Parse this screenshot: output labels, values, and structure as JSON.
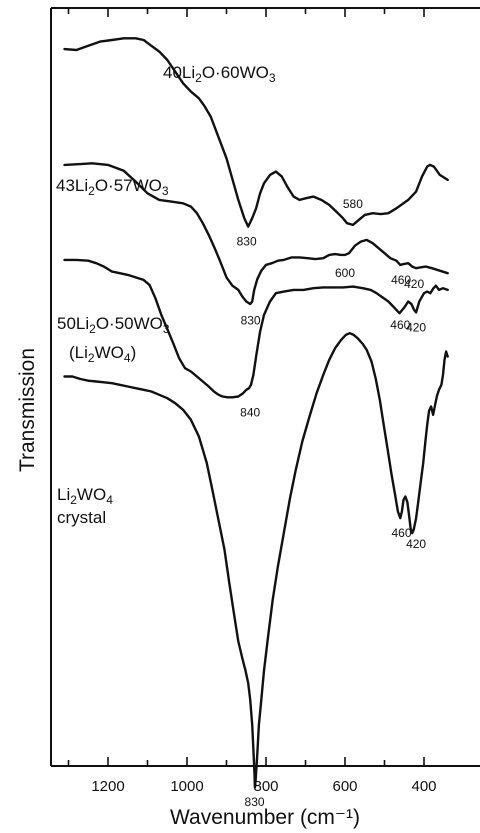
{
  "chart_data": {
    "type": "line",
    "title": "",
    "xlabel": "Wavenumber (cm⁻¹)",
    "ylabel": "Transmission",
    "xlim": [
      1310,
      340
    ],
    "x_ticks": [
      1200,
      1000,
      800,
      600,
      400
    ],
    "grid": false,
    "series": [
      {
        "name_parts": [
          [
            "40Li",
            ""
          ],
          [
            "2",
            "sub"
          ],
          [
            "O·60WO",
            ""
          ],
          [
            "3",
            "sub"
          ]
        ],
        "points": [
          [
            1310,
            59
          ],
          [
            1280,
            60
          ],
          [
            1250,
            55
          ],
          [
            1220,
            50
          ],
          [
            1190,
            48
          ],
          [
            1160,
            46
          ],
          [
            1130,
            46
          ],
          [
            1110,
            48
          ],
          [
            1090,
            55
          ],
          [
            1070,
            62
          ],
          [
            1050,
            72
          ],
          [
            1030,
            86
          ],
          [
            1010,
            100
          ],
          [
            990,
            110
          ],
          [
            970,
            118
          ],
          [
            955,
            128
          ],
          [
            940,
            140
          ],
          [
            920,
            165
          ],
          [
            900,
            190
          ],
          [
            885,
            215
          ],
          [
            870,
            240
          ],
          [
            855,
            262
          ],
          [
            845,
            272
          ],
          [
            835,
            262
          ],
          [
            825,
            250
          ],
          [
            815,
            232
          ],
          [
            805,
            220
          ],
          [
            790,
            210
          ],
          [
            775,
            206
          ],
          [
            760,
            212
          ],
          [
            745,
            225
          ],
          [
            730,
            236
          ],
          [
            715,
            240
          ],
          [
            700,
            238
          ],
          [
            680,
            236
          ],
          [
            660,
            240
          ],
          [
            640,
            246
          ],
          [
            620,
            255
          ],
          [
            605,
            262
          ],
          [
            595,
            268
          ],
          [
            580,
            270
          ],
          [
            565,
            264
          ],
          [
            550,
            258
          ],
          [
            530,
            256
          ],
          [
            510,
            257
          ],
          [
            490,
            256
          ],
          [
            470,
            250
          ],
          [
            455,
            245
          ],
          [
            440,
            240
          ],
          [
            420,
            230
          ],
          [
            405,
            212
          ],
          [
            392,
            200
          ],
          [
            385,
            198
          ],
          [
            375,
            200
          ],
          [
            360,
            210
          ],
          [
            340,
            216
          ]
        ]
      },
      {
        "name_parts": [
          [
            "43Li",
            ""
          ],
          [
            "2",
            "sub"
          ],
          [
            "O·57WO",
            ""
          ],
          [
            "3",
            "sub"
          ]
        ],
        "points": [
          [
            1310,
            198
          ],
          [
            1270,
            197
          ],
          [
            1240,
            196
          ],
          [
            1200,
            198
          ],
          [
            1160,
            205
          ],
          [
            1130,
            218
          ],
          [
            1100,
            232
          ],
          [
            1070,
            240
          ],
          [
            1040,
            242
          ],
          [
            1010,
            244
          ],
          [
            990,
            248
          ],
          [
            975,
            256
          ],
          [
            960,
            268
          ],
          [
            945,
            282
          ],
          [
            930,
            298
          ],
          [
            915,
            315
          ],
          [
            900,
            333
          ],
          [
            885,
            343
          ],
          [
            870,
            348
          ],
          [
            860,
            356
          ],
          [
            850,
            362
          ],
          [
            840,
            365
          ],
          [
            835,
            362
          ],
          [
            830,
            348
          ],
          [
            822,
            335
          ],
          [
            812,
            325
          ],
          [
            800,
            318
          ],
          [
            785,
            316
          ],
          [
            770,
            313
          ],
          [
            755,
            312
          ],
          [
            735,
            309
          ],
          [
            715,
            309
          ],
          [
            695,
            310
          ],
          [
            675,
            311
          ],
          [
            655,
            310
          ],
          [
            640,
            306
          ],
          [
            625,
            305
          ],
          [
            610,
            306
          ],
          [
            600,
            306
          ],
          [
            590,
            304
          ],
          [
            575,
            295
          ],
          [
            560,
            290
          ],
          [
            545,
            288
          ],
          [
            530,
            292
          ],
          [
            515,
            298
          ],
          [
            500,
            304
          ],
          [
            485,
            310
          ],
          [
            470,
            313
          ],
          [
            460,
            318
          ],
          [
            452,
            317
          ],
          [
            440,
            316
          ],
          [
            430,
            320
          ],
          [
            420,
            322
          ],
          [
            410,
            321
          ],
          [
            395,
            320
          ],
          [
            380,
            322
          ],
          [
            360,
            325
          ],
          [
            340,
            328
          ]
        ]
      },
      {
        "name_parts": [
          [
            "50Li",
            ""
          ],
          [
            "2",
            "sub"
          ],
          [
            "O·50WO",
            ""
          ],
          [
            "3",
            "sub"
          ]
        ],
        "name_parts_2": [
          [
            "(Li",
            ""
          ],
          [
            "2",
            "sub"
          ],
          [
            "WO",
            ""
          ],
          [
            "4",
            "sub"
          ],
          [
            ")",
            ""
          ]
        ],
        "points": [
          [
            1310,
            312
          ],
          [
            1280,
            312
          ],
          [
            1250,
            313
          ],
          [
            1230,
            316
          ],
          [
            1210,
            320
          ],
          [
            1190,
            326
          ],
          [
            1170,
            328
          ],
          [
            1150,
            330
          ],
          [
            1130,
            333
          ],
          [
            1110,
            336
          ],
          [
            1095,
            342
          ],
          [
            1080,
            358
          ],
          [
            1065,
            378
          ],
          [
            1050,
            395
          ],
          [
            1035,
            412
          ],
          [
            1020,
            430
          ],
          [
            1005,
            442
          ],
          [
            990,
            446
          ],
          [
            975,
            452
          ],
          [
            960,
            458
          ],
          [
            945,
            464
          ],
          [
            932,
            470
          ],
          [
            920,
            474
          ],
          [
            910,
            476
          ],
          [
            897,
            477
          ],
          [
            885,
            477
          ],
          [
            870,
            476
          ],
          [
            858,
            472
          ],
          [
            850,
            468
          ],
          [
            843,
            466
          ],
          [
            838,
            462
          ],
          [
            832,
            450
          ],
          [
            825,
            428
          ],
          [
            815,
            398
          ],
          [
            805,
            378
          ],
          [
            790,
            362
          ],
          [
            775,
            352
          ],
          [
            755,
            350
          ],
          [
            730,
            348
          ],
          [
            705,
            348
          ],
          [
            680,
            346
          ],
          [
            655,
            345
          ],
          [
            630,
            345
          ],
          [
            605,
            345
          ],
          [
            580,
            344
          ],
          [
            555,
            346
          ],
          [
            535,
            348
          ],
          [
            520,
            352
          ],
          [
            505,
            357
          ],
          [
            490,
            362
          ],
          [
            478,
            368
          ],
          [
            470,
            372
          ],
          [
            462,
            376
          ],
          [
            455,
            372
          ],
          [
            448,
            368
          ],
          [
            440,
            362
          ],
          [
            432,
            365
          ],
          [
            425,
            372
          ],
          [
            420,
            375
          ],
          [
            412,
            362
          ],
          [
            400,
            352
          ],
          [
            392,
            350
          ],
          [
            384,
            352
          ],
          [
            376,
            346
          ],
          [
            370,
            343
          ],
          [
            362,
            348
          ],
          [
            352,
            346
          ],
          [
            340,
            348
          ]
        ]
      },
      {
        "name_parts": [
          [
            "Li",
            ""
          ],
          [
            "2",
            "sub"
          ],
          [
            "WO",
            ""
          ],
          [
            "4",
            "sub"
          ]
        ],
        "name_parts_2": [
          [
            "crystal",
            ""
          ]
        ],
        "points": [
          [
            1310,
            452
          ],
          [
            1290,
            452
          ],
          [
            1270,
            455
          ],
          [
            1250,
            457
          ],
          [
            1230,
            458
          ],
          [
            1210,
            459
          ],
          [
            1190,
            460
          ],
          [
            1170,
            462
          ],
          [
            1150,
            464
          ],
          [
            1130,
            466
          ],
          [
            1110,
            468
          ],
          [
            1090,
            470
          ],
          [
            1070,
            474
          ],
          [
            1050,
            478
          ],
          [
            1030,
            484
          ],
          [
            1010,
            492
          ],
          [
            990,
            504
          ],
          [
            970,
            524
          ],
          [
            950,
            556
          ],
          [
            935,
            590
          ],
          [
            920,
            625
          ],
          [
            905,
            660
          ],
          [
            893,
            700
          ],
          [
            880,
            740
          ],
          [
            870,
            770
          ],
          [
            860,
            790
          ],
          [
            852,
            805
          ],
          [
            845,
            820
          ],
          [
            840,
            840
          ],
          [
            835,
            870
          ],
          [
            832,
            900
          ],
          [
            829,
            930
          ],
          [
            828,
            945
          ],
          [
            826,
            935
          ],
          [
            822,
            905
          ],
          [
            818,
            870
          ],
          [
            812,
            840
          ],
          [
            805,
            805
          ],
          [
            795,
            765
          ],
          [
            783,
            720
          ],
          [
            770,
            680
          ],
          [
            755,
            640
          ],
          [
            740,
            600
          ],
          [
            725,
            565
          ],
          [
            708,
            530
          ],
          [
            690,
            500
          ],
          [
            672,
            472
          ],
          [
            655,
            450
          ],
          [
            640,
            432
          ],
          [
            625,
            418
          ],
          [
            610,
            408
          ],
          [
            598,
            402
          ],
          [
            588,
            400
          ],
          [
            578,
            402
          ],
          [
            568,
            406
          ],
          [
            555,
            413
          ],
          [
            545,
            420
          ],
          [
            533,
            434
          ],
          [
            522,
            455
          ],
          [
            512,
            480
          ],
          [
            502,
            510
          ],
          [
            492,
            540
          ],
          [
            482,
            570
          ],
          [
            474,
            592
          ],
          [
            466,
            614
          ],
          [
            460,
            622
          ],
          [
            456,
            614
          ],
          [
            452,
            600
          ],
          [
            447,
            596
          ],
          [
            442,
            603
          ],
          [
            438,
            618
          ],
          [
            434,
            634
          ],
          [
            430,
            640
          ],
          [
            426,
            636
          ],
          [
            420,
            622
          ],
          [
            414,
            600
          ],
          [
            408,
            578
          ],
          [
            402,
            556
          ],
          [
            397,
            532
          ],
          [
            392,
            510
          ],
          [
            387,
            493
          ],
          [
            382,
            488
          ],
          [
            377,
            498
          ],
          [
            372,
            486
          ],
          [
            367,
            475
          ],
          [
            362,
            468
          ],
          [
            356,
            462
          ],
          [
            352,
            450
          ],
          [
            348,
            432
          ],
          [
            344,
            422
          ],
          [
            340,
            428
          ]
        ]
      }
    ],
    "annotations": [
      {
        "text": "830",
        "x": 849,
        "y": 290
      },
      {
        "text": "580",
        "x": 580,
        "y": 245
      },
      {
        "text": "830",
        "x": 839,
        "y": 385
      },
      {
        "text": "600",
        "x": 600,
        "y": 328
      },
      {
        "text": "460",
        "x": 458,
        "y": 336
      },
      {
        "text": "420",
        "x": 425,
        "y": 341
      },
      {
        "text": "840",
        "x": 840,
        "y": 495
      },
      {
        "text": "460",
        "x": 460,
        "y": 390
      },
      {
        "text": "420",
        "x": 420,
        "y": 393
      },
      {
        "text": "460",
        "x": 457,
        "y": 640
      },
      {
        "text": "420",
        "x": 420,
        "y": 653
      },
      {
        "text": "830",
        "x": 829,
        "y": 963
      }
    ]
  }
}
